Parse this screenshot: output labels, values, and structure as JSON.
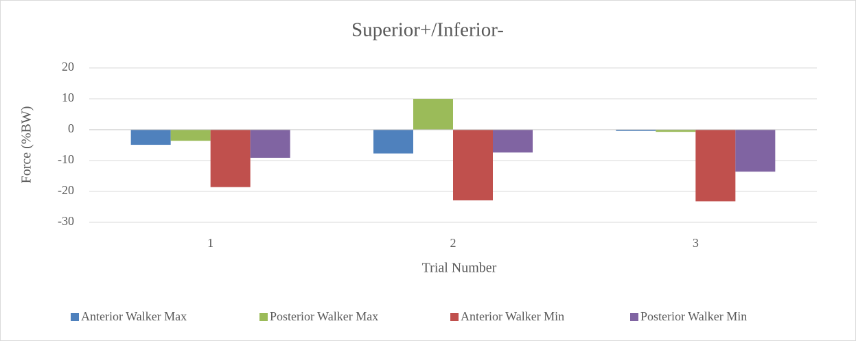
{
  "chart_data": {
    "type": "bar",
    "title": "Superior+/Inferior-",
    "x_label": "Trial Number",
    "y_label": "Force (%BW)",
    "categories": [
      "1",
      "2",
      "3"
    ],
    "series": [
      {
        "name": "Anterior Walker Max",
        "color": "#4f81bd",
        "values": [
          -4.9,
          -7.7,
          -0.4
        ]
      },
      {
        "name": "Posterior Walker Max",
        "color": "#9bbb59",
        "values": [
          -3.6,
          10,
          -0.7
        ]
      },
      {
        "name": "Anterior Walker Min",
        "color": "#c0504d",
        "values": [
          -18.6,
          -22.9,
          -23.2
        ]
      },
      {
        "name": "Posterior Walker Min",
        "color": "#8064a2",
        "values": [
          -9.1,
          -7.4,
          -13.6
        ]
      }
    ],
    "ylim": [
      -30,
      20
    ],
    "yticks": [
      -30,
      -20,
      -10,
      0,
      10,
      20
    ],
    "grid": true,
    "legend": "bottom"
  }
}
